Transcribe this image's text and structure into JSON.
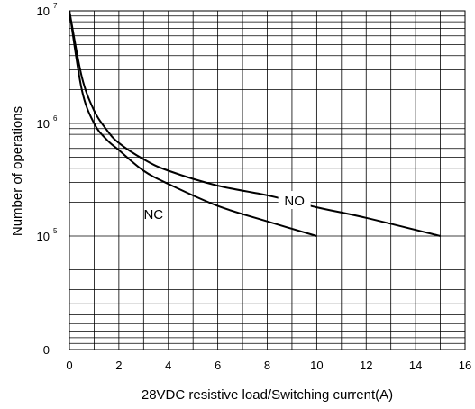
{
  "chart_data": {
    "type": "line",
    "title": "",
    "xlabel": "28VDC resistive load/Switching current(A)",
    "ylabel": "Number of operations",
    "xlim": [
      0,
      16
    ],
    "x_ticks": [
      "0",
      "2",
      "4",
      "6",
      "8",
      "10",
      "12",
      "14",
      "16"
    ],
    "y_scale": "log",
    "y_ticks": [
      {
        "value": 10000000,
        "base": "10",
        "exp": "7"
      },
      {
        "value": 1000000,
        "base": "10",
        "exp": "6"
      },
      {
        "value": 100000,
        "base": "10",
        "exp": "5"
      },
      {
        "value": 0,
        "base": "0",
        "exp": ""
      }
    ],
    "grid": true,
    "series": [
      {
        "name": "NO",
        "points": [
          {
            "x": 0,
            "y": 10000000
          },
          {
            "x": 0.5,
            "y": 2600000
          },
          {
            "x": 1,
            "y": 1300000
          },
          {
            "x": 1.5,
            "y": 880000
          },
          {
            "x": 2,
            "y": 670000
          },
          {
            "x": 3,
            "y": 480000
          },
          {
            "x": 4,
            "y": 380000
          },
          {
            "x": 6,
            "y": 280000
          },
          {
            "x": 8,
            "y": 230000
          },
          {
            "x": 10,
            "y": 180000
          },
          {
            "x": 12,
            "y": 145000
          },
          {
            "x": 15,
            "y": 100000
          }
        ]
      },
      {
        "name": "NC",
        "points": [
          {
            "x": 0,
            "y": 10000000
          },
          {
            "x": 0.5,
            "y": 2000000
          },
          {
            "x": 1,
            "y": 1000000
          },
          {
            "x": 1.5,
            "y": 720000
          },
          {
            "x": 2,
            "y": 580000
          },
          {
            "x": 3,
            "y": 380000
          },
          {
            "x": 4,
            "y": 290000
          },
          {
            "x": 6,
            "y": 185000
          },
          {
            "x": 8,
            "y": 135000
          },
          {
            "x": 10,
            "y": 100000
          }
        ]
      }
    ]
  }
}
